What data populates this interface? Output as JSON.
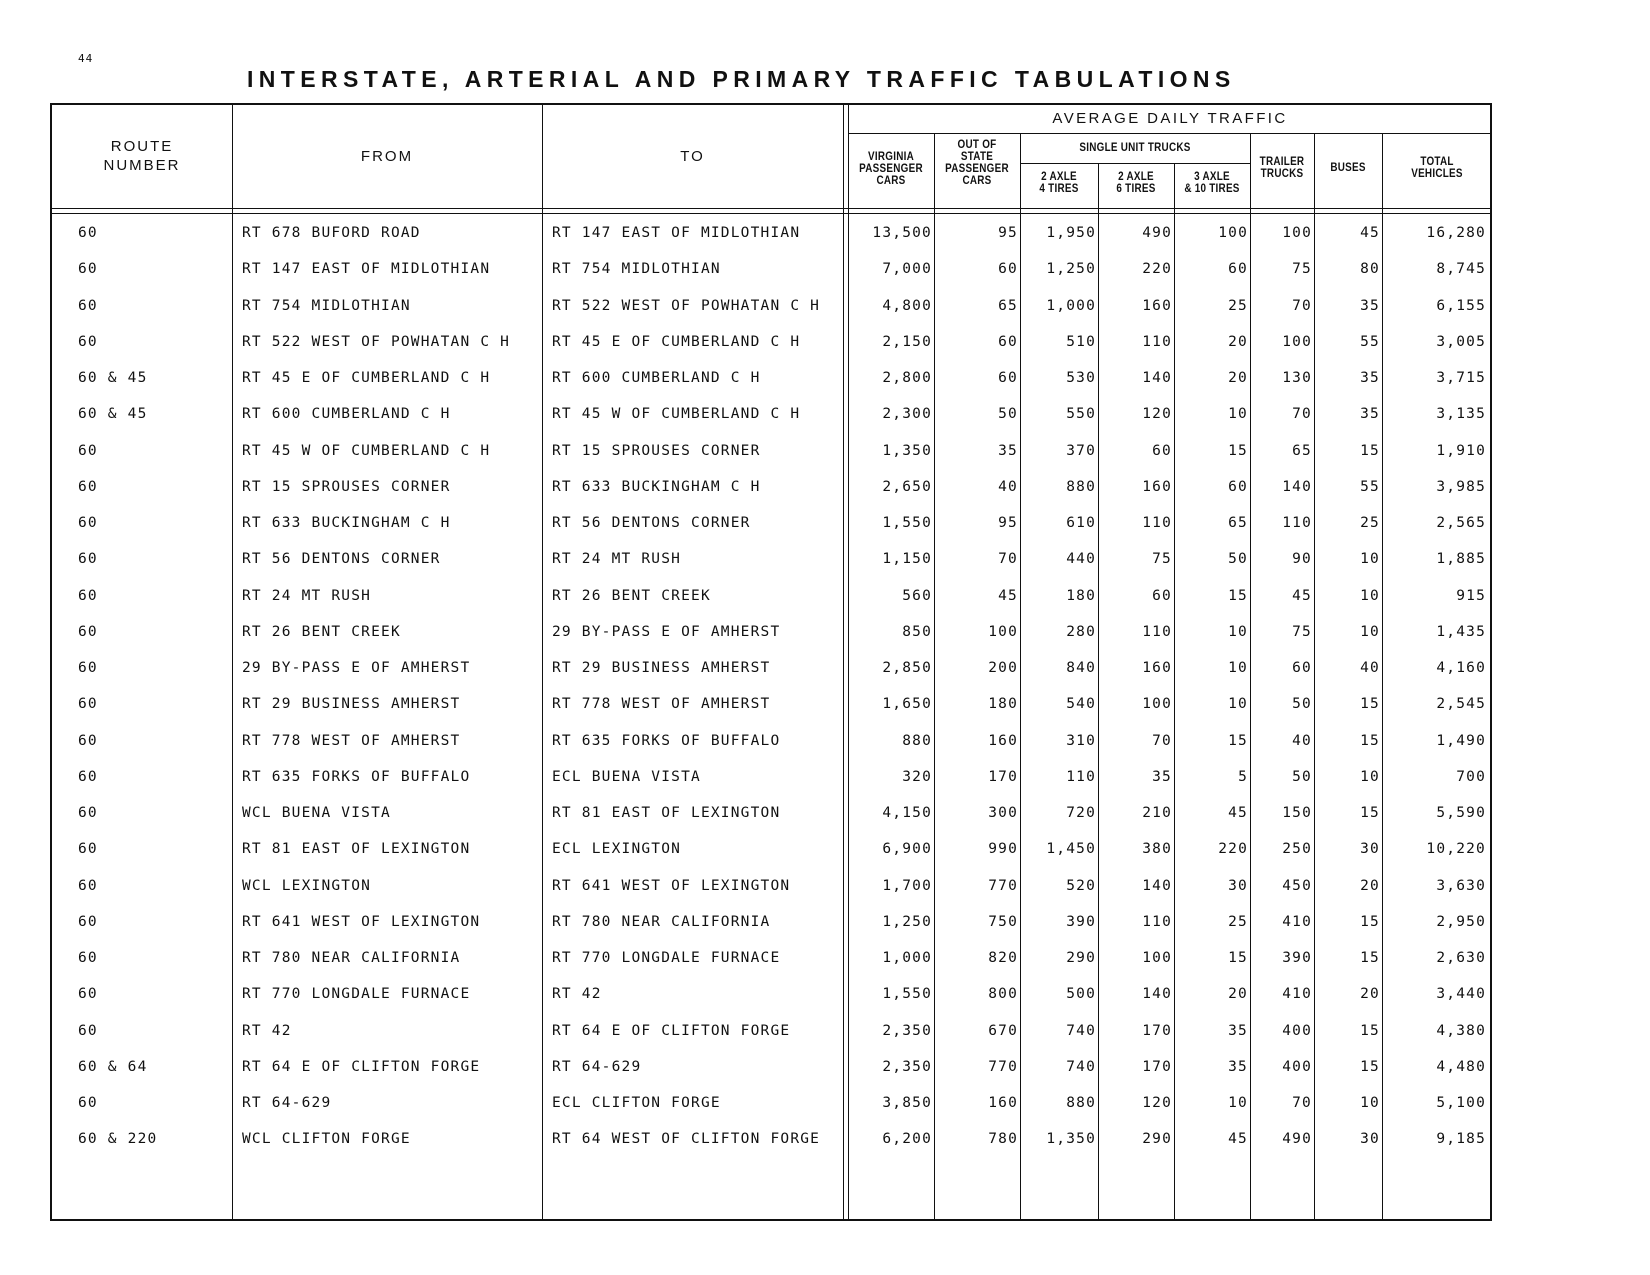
{
  "page_number": "44",
  "title": "INTERSTATE, ARTERIAL AND PRIMARY TRAFFIC TABULATIONS",
  "headers": {
    "route": "ROUTE\nNUMBER",
    "from": "FROM",
    "to": "TO",
    "adt": "AVERAGE DAILY TRAFFIC",
    "va_cars": "VIRGINIA\nPASSENGER\nCARS",
    "oos_cars": "OUT OF\nSTATE\nPASSENGER\nCARS",
    "sut": "SINGLE UNIT TRUCKS",
    "axle2_4": "2 AXLE\n4 TIRES",
    "axle2_6": "2 AXLE\n6 TIRES",
    "axle3": "3 AXLE\n& 10 TIRES",
    "trailer": "TRAILER\nTRUCKS",
    "buses": "BUSES",
    "total": "TOTAL\nVEHICLES"
  },
  "rows": [
    {
      "route": "60",
      "from": "RT 678 BUFORD ROAD",
      "to": "RT 147 EAST OF MIDLOTHIAN",
      "va": "13,500",
      "oos": "95",
      "a24": "1,950",
      "a26": "490",
      "a3": "100",
      "trailer": "100",
      "buses": "45",
      "total": "16,280"
    },
    {
      "route": "60",
      "from": "RT 147 EAST OF MIDLOTHIAN",
      "to": "RT 754 MIDLOTHIAN",
      "va": "7,000",
      "oos": "60",
      "a24": "1,250",
      "a26": "220",
      "a3": "60",
      "trailer": "75",
      "buses": "80",
      "total": "8,745"
    },
    {
      "route": "60",
      "from": "RT 754 MIDLOTHIAN",
      "to": "RT 522 WEST OF POWHATAN C H",
      "va": "4,800",
      "oos": "65",
      "a24": "1,000",
      "a26": "160",
      "a3": "25",
      "trailer": "70",
      "buses": "35",
      "total": "6,155"
    },
    {
      "route": "60",
      "from": "RT 522 WEST OF POWHATAN C H",
      "to": "RT 45 E OF CUMBERLAND C H",
      "va": "2,150",
      "oos": "60",
      "a24": "510",
      "a26": "110",
      "a3": "20",
      "trailer": "100",
      "buses": "55",
      "total": "3,005"
    },
    {
      "route": "60 & 45",
      "from": "RT 45 E OF CUMBERLAND C H",
      "to": "RT 600 CUMBERLAND C H",
      "va": "2,800",
      "oos": "60",
      "a24": "530",
      "a26": "140",
      "a3": "20",
      "trailer": "130",
      "buses": "35",
      "total": "3,715"
    },
    {
      "route": "60 & 45",
      "from": "RT 600 CUMBERLAND C H",
      "to": "RT 45 W OF CUMBERLAND C H",
      "va": "2,300",
      "oos": "50",
      "a24": "550",
      "a26": "120",
      "a3": "10",
      "trailer": "70",
      "buses": "35",
      "total": "3,135"
    },
    {
      "route": "60",
      "from": "RT 45 W OF CUMBERLAND C H",
      "to": "RT 15 SPROUSES CORNER",
      "va": "1,350",
      "oos": "35",
      "a24": "370",
      "a26": "60",
      "a3": "15",
      "trailer": "65",
      "buses": "15",
      "total": "1,910"
    },
    {
      "route": "60",
      "from": "RT 15 SPROUSES CORNER",
      "to": "RT 633 BUCKINGHAM C H",
      "va": "2,650",
      "oos": "40",
      "a24": "880",
      "a26": "160",
      "a3": "60",
      "trailer": "140",
      "buses": "55",
      "total": "3,985"
    },
    {
      "route": "60",
      "from": "RT 633 BUCKINGHAM C H",
      "to": "RT 56 DENTONS CORNER",
      "va": "1,550",
      "oos": "95",
      "a24": "610",
      "a26": "110",
      "a3": "65",
      "trailer": "110",
      "buses": "25",
      "total": "2,565"
    },
    {
      "route": "60",
      "from": "RT 56 DENTONS CORNER",
      "to": "RT 24 MT RUSH",
      "va": "1,150",
      "oos": "70",
      "a24": "440",
      "a26": "75",
      "a3": "50",
      "trailer": "90",
      "buses": "10",
      "total": "1,885"
    },
    {
      "route": "60",
      "from": "RT 24 MT RUSH",
      "to": "RT 26 BENT CREEK",
      "va": "560",
      "oos": "45",
      "a24": "180",
      "a26": "60",
      "a3": "15",
      "trailer": "45",
      "buses": "10",
      "total": "915"
    },
    {
      "route": "60",
      "from": "RT 26 BENT CREEK",
      "to": "29 BY-PASS E OF AMHERST",
      "va": "850",
      "oos": "100",
      "a24": "280",
      "a26": "110",
      "a3": "10",
      "trailer": "75",
      "buses": "10",
      "total": "1,435"
    },
    {
      "route": "60",
      "from": "29 BY-PASS E OF AMHERST",
      "to": "RT 29 BUSINESS AMHERST",
      "va": "2,850",
      "oos": "200",
      "a24": "840",
      "a26": "160",
      "a3": "10",
      "trailer": "60",
      "buses": "40",
      "total": "4,160"
    },
    {
      "route": "60",
      "from": "RT 29 BUSINESS AMHERST",
      "to": "RT 778 WEST OF AMHERST",
      "va": "1,650",
      "oos": "180",
      "a24": "540",
      "a26": "100",
      "a3": "10",
      "trailer": "50",
      "buses": "15",
      "total": "2,545"
    },
    {
      "route": "60",
      "from": "RT 778 WEST OF AMHERST",
      "to": "RT 635 FORKS OF BUFFALO",
      "va": "880",
      "oos": "160",
      "a24": "310",
      "a26": "70",
      "a3": "15",
      "trailer": "40",
      "buses": "15",
      "total": "1,490"
    },
    {
      "route": "60",
      "from": "RT 635 FORKS OF BUFFALO",
      "to": "ECL BUENA VISTA",
      "va": "320",
      "oos": "170",
      "a24": "110",
      "a26": "35",
      "a3": "5",
      "trailer": "50",
      "buses": "10",
      "total": "700"
    },
    {
      "route": "60",
      "from": "WCL BUENA VISTA",
      "to": "RT 81 EAST OF LEXINGTON",
      "va": "4,150",
      "oos": "300",
      "a24": "720",
      "a26": "210",
      "a3": "45",
      "trailer": "150",
      "buses": "15",
      "total": "5,590"
    },
    {
      "route": "60",
      "from": "RT 81 EAST OF LEXINGTON",
      "to": "ECL LEXINGTON",
      "va": "6,900",
      "oos": "990",
      "a24": "1,450",
      "a26": "380",
      "a3": "220",
      "trailer": "250",
      "buses": "30",
      "total": "10,220"
    },
    {
      "route": "60",
      "from": "WCL LEXINGTON",
      "to": "RT 641 WEST OF LEXINGTON",
      "va": "1,700",
      "oos": "770",
      "a24": "520",
      "a26": "140",
      "a3": "30",
      "trailer": "450",
      "buses": "20",
      "total": "3,630"
    },
    {
      "route": "60",
      "from": "RT 641 WEST OF LEXINGTON",
      "to": "RT 780 NEAR CALIFORNIA",
      "va": "1,250",
      "oos": "750",
      "a24": "390",
      "a26": "110",
      "a3": "25",
      "trailer": "410",
      "buses": "15",
      "total": "2,950"
    },
    {
      "route": "60",
      "from": "RT 780 NEAR CALIFORNIA",
      "to": "RT 770 LONGDALE FURNACE",
      "va": "1,000",
      "oos": "820",
      "a24": "290",
      "a26": "100",
      "a3": "15",
      "trailer": "390",
      "buses": "15",
      "total": "2,630"
    },
    {
      "route": "60",
      "from": "RT 770 LONGDALE FURNACE",
      "to": "RT 42",
      "va": "1,550",
      "oos": "800",
      "a24": "500",
      "a26": "140",
      "a3": "20",
      "trailer": "410",
      "buses": "20",
      "total": "3,440"
    },
    {
      "route": "60",
      "from": "RT 42",
      "to": "RT 64 E OF CLIFTON FORGE",
      "va": "2,350",
      "oos": "670",
      "a24": "740",
      "a26": "170",
      "a3": "35",
      "trailer": "400",
      "buses": "15",
      "total": "4,380"
    },
    {
      "route": "60 & 64",
      "from": "RT 64 E OF CLIFTON FORGE",
      "to": "RT 64-629",
      "va": "2,350",
      "oos": "770",
      "a24": "740",
      "a26": "170",
      "a3": "35",
      "trailer": "400",
      "buses": "15",
      "total": "4,480"
    },
    {
      "route": "60",
      "from": "RT 64-629",
      "to": "ECL CLIFTON FORGE",
      "va": "3,850",
      "oos": "160",
      "a24": "880",
      "a26": "120",
      "a3": "10",
      "trailer": "70",
      "buses": "10",
      "total": "5,100"
    },
    {
      "route": "60 & 220",
      "from": "WCL CLIFTON FORGE",
      "to": "RT 64 WEST OF CLIFTON FORGE",
      "va": "6,200",
      "oos": "780",
      "a24": "1,350",
      "a26": "290",
      "a3": "45",
      "trailer": "490",
      "buses": "30",
      "total": "9,185"
    }
  ]
}
